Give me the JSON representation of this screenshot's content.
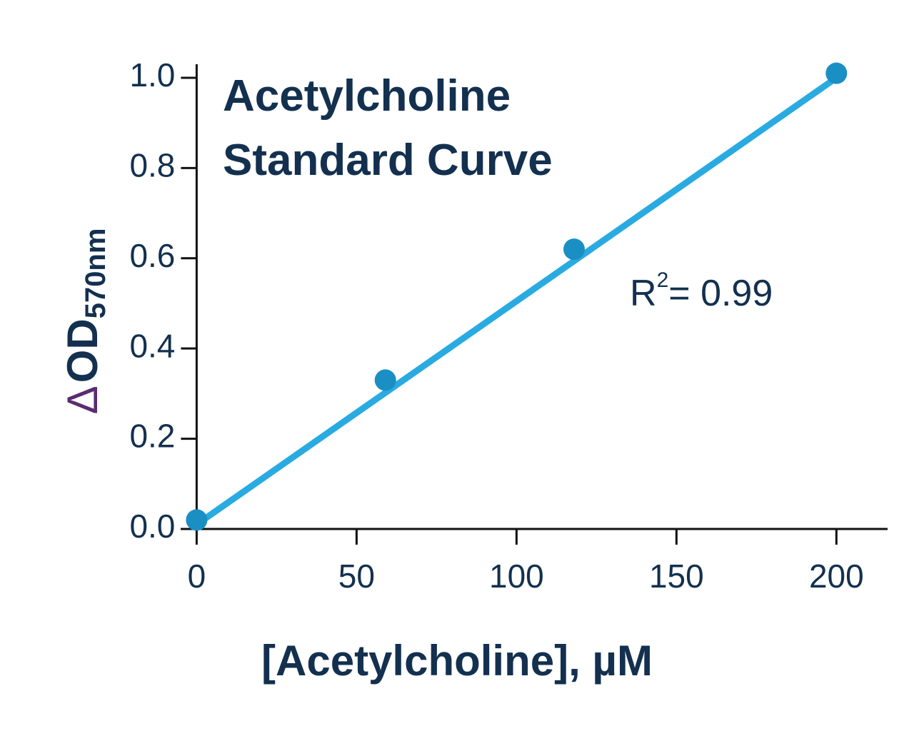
{
  "chart_data": {
    "type": "scatter",
    "title": [
      "Acetylcholine",
      "Standard Curve"
    ],
    "xlabel": "[Acetylcholine], µM",
    "ylabel": [
      "Δ",
      "OD",
      "570nm"
    ],
    "annotation": [
      "R",
      "2",
      "= 0.99"
    ],
    "xlim": [
      -5,
      216
    ],
    "ylim": [
      0,
      1.03
    ],
    "xticks": [
      0,
      50,
      100,
      150,
      200
    ],
    "yticks": [
      {
        "value": 0,
        "label": "0.0"
      },
      {
        "value": 0.2,
        "label": "0.2"
      },
      {
        "value": 0.4,
        "label": "0.4"
      },
      {
        "value": 0.6,
        "label": "0.6"
      },
      {
        "value": 0.8,
        "label": "0.8"
      },
      {
        "value": 1.0,
        "label": "1.0"
      }
    ],
    "series": [
      {
        "color": "#1a8fc4",
        "x": [
          0,
          59,
          118,
          200
        ],
        "values": [
          0.02,
          0.33,
          0.62,
          1.01
        ]
      }
    ],
    "fit": {
      "color": "#29abe2",
      "x": [
        0,
        200
      ],
      "values": [
        0.01,
        1.0
      ]
    }
  }
}
